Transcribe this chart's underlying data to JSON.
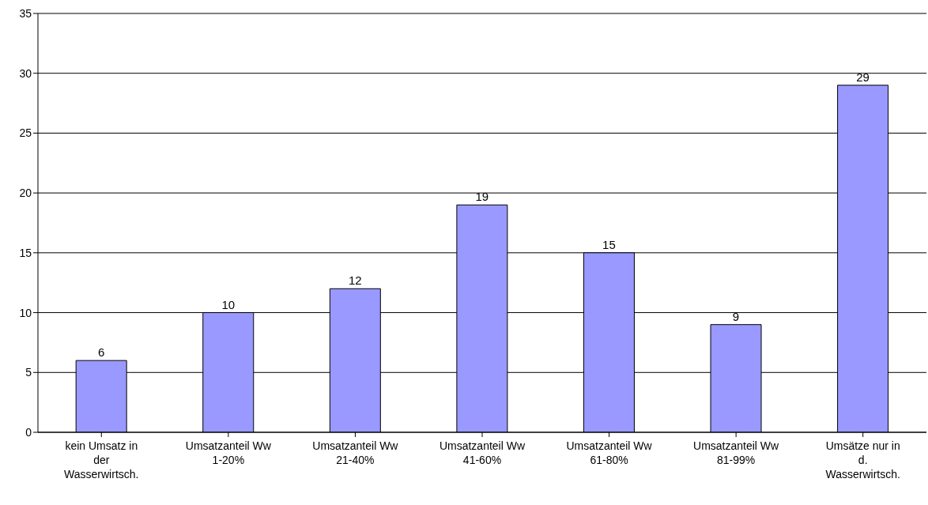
{
  "chart_data": {
    "type": "bar",
    "categories": [
      "kein Umsatz in der Wasserwirtsch.",
      "Umsatzanteil Ww 1-20%",
      "Umsatzanteil Ww 21-40%",
      "Umsatzanteil Ww 41-60%",
      "Umsatzanteil Ww 61-80%",
      "Umsatzanteil Ww 81-99%",
      "Umsätze nur in d. Wasserwirtsch."
    ],
    "values": [
      6,
      10,
      12,
      19,
      15,
      9,
      29
    ],
    "color": "#9999ff",
    "ylim": [
      0,
      35
    ],
    "yticks": [
      0,
      5,
      10,
      15,
      20,
      25,
      30,
      35
    ],
    "grid": "y",
    "data_labels": true
  }
}
